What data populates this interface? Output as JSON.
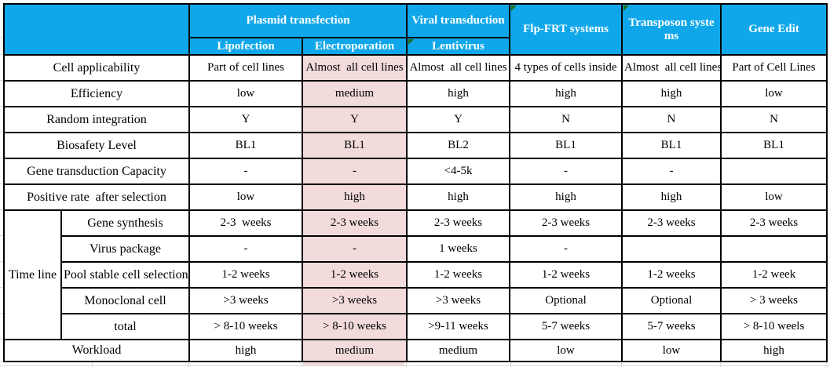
{
  "colors": {
    "header_bg": "#10A7EA",
    "header_text": "#FFFFFF",
    "highlight_bg": "#F3DBDB",
    "error_triangle": "#1E7019",
    "table_border": "#000000",
    "gridline": "#D9D9D9"
  },
  "header": {
    "corner_label": "",
    "groups": {
      "plasmid": "Plasmid transfection",
      "viral": "Viral transduction",
      "flp_frt": "Flp-FRT systems",
      "transposon": "Transposon syste\nms",
      "gene_edit": "Gene Edit"
    },
    "methods": {
      "lipofection": "Lipofection",
      "electroporation": "Electroporation",
      "lentivirus": "Lentivirus"
    }
  },
  "timeline_label": "Time line",
  "rows": [
    {
      "label": "Cell applicability",
      "values": [
        "Part of cell lines",
        "Almost  all cell lines",
        "Almost  all cell lines",
        "4 types of cells inside",
        "Almost  all cell lines",
        "Part of Cell Lines"
      ]
    },
    {
      "label": "Efficiency",
      "values": [
        "low",
        "medium",
        "high",
        "high",
        "high",
        "low"
      ]
    },
    {
      "label": "Random integration",
      "values": [
        "Y",
        "Y",
        "Y",
        "N",
        "N",
        "N"
      ]
    },
    {
      "label": "Biosafety Level",
      "values": [
        "BL1",
        "BL1",
        "BL2",
        "BL1",
        "BL1",
        "BL1"
      ]
    },
    {
      "label": "Gene transduction Capacity",
      "values": [
        "-",
        "-",
        "<4-5k",
        "-",
        "-",
        ""
      ]
    },
    {
      "label": "Positive rate  after selection",
      "values": [
        "low",
        "high",
        "high",
        "high",
        "high",
        "low"
      ]
    },
    {
      "label": "Gene synthesis",
      "values": [
        "2-3  weeks",
        "2-3 weeks",
        "2-3 weeks",
        "2-3 weeks",
        "2-3 weeks",
        "2-3 weeks"
      ]
    },
    {
      "label": "Virus package",
      "values": [
        "-",
        "-",
        "1 weeks",
        "-",
        "",
        ""
      ]
    },
    {
      "label": "Pool stable cell selection",
      "values": [
        "1-2 weeks",
        "1-2 weeks",
        "1-2 weeks",
        "1-2 weeks",
        "1-2 weeks",
        "1-2 week"
      ]
    },
    {
      "label": "Monoclonal cell",
      "values": [
        ">3 weeks",
        ">3 weeks",
        ">3 weeks",
        "Optional",
        "Optional",
        "> 3 weeks"
      ]
    },
    {
      "label": "total",
      "values": [
        "> 8-10 weeks",
        "> 8-10 weeks",
        ">9-11 weeks",
        "5-7 weeks",
        "5-7 weeks",
        "> 8-10 weels"
      ]
    },
    {
      "label": "Workload",
      "values": [
        "high",
        "medium",
        "medium",
        "low",
        "low",
        "high"
      ]
    }
  ]
}
